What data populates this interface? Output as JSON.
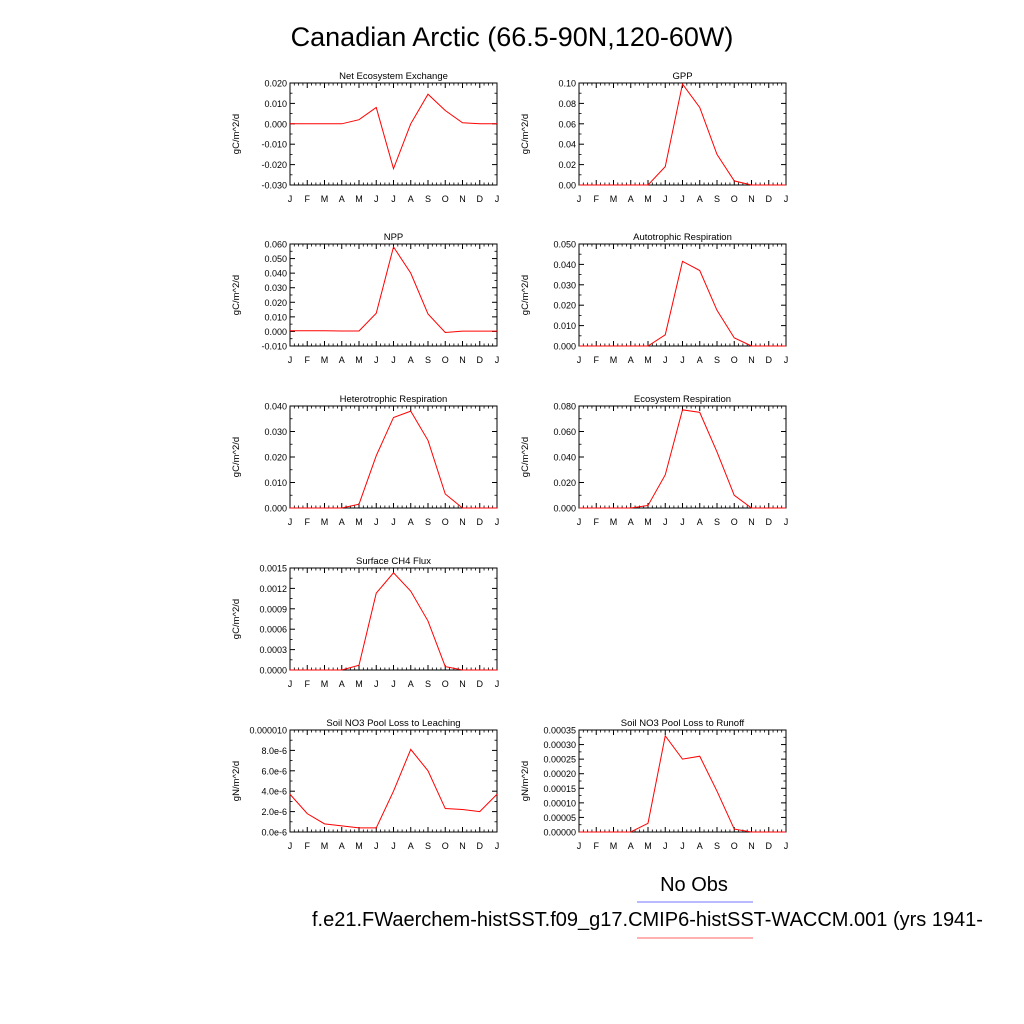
{
  "figure": {
    "title": "Canadian Arctic (66.5-90N,120-60W)",
    "legend": [
      {
        "label": "No Obs",
        "color": "#8f8fff"
      },
      {
        "label": "f.e21.FWaerchem-histSST.f09_g17.CMIP6-histSST-WACCM.001 (yrs 1941-",
        "color": "#ff8080"
      }
    ],
    "series_color": "#ff0000"
  },
  "chart_data": [
    {
      "type": "line",
      "title": "Net Ecosystem Exchange",
      "ylabel": "gC/m^2/d",
      "categories": [
        "J",
        "F",
        "M",
        "A",
        "M",
        "J",
        "J",
        "A",
        "S",
        "O",
        "N",
        "D",
        "J"
      ],
      "ylim": [
        -0.03,
        0.02
      ],
      "yticks": [
        -0.03,
        -0.02,
        -0.01,
        0.0,
        0.01,
        0.02
      ],
      "ytick_labels": [
        "-0.030",
        "-0.020",
        "-0.010",
        "0.000",
        "0.010",
        "0.020"
      ],
      "values": [
        0.0,
        0.0,
        0.0,
        0.0,
        0.002,
        0.008,
        -0.022,
        0.0,
        0.0145,
        0.0065,
        0.0005,
        0.0,
        0.0
      ]
    },
    {
      "type": "line",
      "title": "GPP",
      "ylabel": "gC/m^2/d",
      "categories": [
        "J",
        "F",
        "M",
        "A",
        "M",
        "J",
        "J",
        "A",
        "S",
        "O",
        "N",
        "D",
        "J"
      ],
      "ylim": [
        0.0,
        0.1
      ],
      "yticks": [
        0.0,
        0.02,
        0.04,
        0.06,
        0.08,
        0.1
      ],
      "ytick_labels": [
        "0.00",
        "0.02",
        "0.04",
        "0.06",
        "0.08",
        "0.10"
      ],
      "values": [
        0.0,
        0.0,
        0.0,
        0.0,
        0.0,
        0.018,
        0.099,
        0.076,
        0.03,
        0.004,
        0.0,
        0.0,
        0.0
      ]
    },
    {
      "type": "line",
      "title": "NPP",
      "ylabel": "gC/m^2/d",
      "categories": [
        "J",
        "F",
        "M",
        "A",
        "M",
        "J",
        "J",
        "A",
        "S",
        "O",
        "N",
        "D",
        "J"
      ],
      "ylim": [
        -0.01,
        0.06
      ],
      "yticks": [
        -0.01,
        0.0,
        0.01,
        0.02,
        0.03,
        0.04,
        0.05,
        0.06
      ],
      "ytick_labels": [
        "-0.010",
        "0.000",
        "0.010",
        "0.020",
        "0.030",
        "0.040",
        "0.050",
        "0.060"
      ],
      "values": [
        0.0005,
        0.0005,
        0.0005,
        0.0003,
        0.0003,
        0.0125,
        0.058,
        0.04,
        0.012,
        -0.0007,
        0.0002,
        0.0002,
        0.0002
      ]
    },
    {
      "type": "line",
      "title": "Autotrophic Respiration",
      "ylabel": "gC/m^2/d",
      "categories": [
        "J",
        "F",
        "M",
        "A",
        "M",
        "J",
        "J",
        "A",
        "S",
        "O",
        "N",
        "D",
        "J"
      ],
      "ylim": [
        0.0,
        0.05
      ],
      "yticks": [
        0.0,
        0.01,
        0.02,
        0.03,
        0.04,
        0.05
      ],
      "ytick_labels": [
        "0.000",
        "0.010",
        "0.020",
        "0.030",
        "0.040",
        "0.050"
      ],
      "values": [
        0.0,
        0.0,
        0.0,
        0.0,
        0.0,
        0.0055,
        0.0415,
        0.037,
        0.0175,
        0.004,
        0.0,
        0.0,
        0.0
      ]
    },
    {
      "type": "line",
      "title": "Heterotrophic Respiration",
      "ylabel": "gC/m^2/d",
      "categories": [
        "J",
        "F",
        "M",
        "A",
        "M",
        "J",
        "J",
        "A",
        "S",
        "O",
        "N",
        "D",
        "J"
      ],
      "ylim": [
        0.0,
        0.04
      ],
      "yticks": [
        0.0,
        0.01,
        0.02,
        0.03,
        0.04
      ],
      "ytick_labels": [
        "0.000",
        "0.010",
        "0.020",
        "0.030",
        "0.040"
      ],
      "values": [
        0.0,
        0.0,
        0.0,
        0.0,
        0.0015,
        0.0205,
        0.0355,
        0.038,
        0.0265,
        0.0055,
        0.0,
        0.0,
        0.0
      ]
    },
    {
      "type": "line",
      "title": "Ecosystem Respiration",
      "ylabel": "gC/m^2/d",
      "categories": [
        "J",
        "F",
        "M",
        "A",
        "M",
        "J",
        "J",
        "A",
        "S",
        "O",
        "N",
        "D",
        "J"
      ],
      "ylim": [
        0.0,
        0.08
      ],
      "yticks": [
        0.0,
        0.02,
        0.04,
        0.06,
        0.08
      ],
      "ytick_labels": [
        "0.000",
        "0.020",
        "0.040",
        "0.060",
        "0.080"
      ],
      "values": [
        0.0,
        0.0,
        0.0,
        0.0,
        0.002,
        0.026,
        0.077,
        0.075,
        0.044,
        0.01,
        0.0,
        0.0,
        0.0
      ]
    },
    {
      "type": "line",
      "title": "Surface CH4 Flux",
      "ylabel": "gC/m^2/d",
      "categories": [
        "J",
        "F",
        "M",
        "A",
        "M",
        "J",
        "J",
        "A",
        "S",
        "O",
        "N",
        "D",
        "J"
      ],
      "ylim": [
        0.0,
        0.0015
      ],
      "yticks": [
        0.0,
        0.0003,
        0.0006,
        0.0009,
        0.0012,
        0.0015
      ],
      "ytick_labels": [
        "0.0000",
        "0.0003",
        "0.0006",
        "0.0009",
        "0.0012",
        "0.0015"
      ],
      "values": [
        0.0,
        0.0,
        0.0,
        0.0,
        7e-05,
        0.00113,
        0.00143,
        0.00116,
        0.00072,
        5e-05,
        0.0,
        0.0,
        0.0
      ]
    },
    {
      "type": "line",
      "title": "Soil NO3 Pool Loss to Leaching",
      "ylabel": "gN/m^2/d",
      "categories": [
        "J",
        "F",
        "M",
        "A",
        "M",
        "J",
        "J",
        "A",
        "S",
        "O",
        "N",
        "D",
        "J"
      ],
      "ylim": [
        0.0,
        1e-05
      ],
      "yticks": [
        0.0,
        2e-06,
        4e-06,
        6e-06,
        8e-06,
        1e-05
      ],
      "ytick_labels": [
        "0.0e-6",
        "2.0e-6",
        "4.0e-6",
        "6.0e-6",
        "8.0e-6",
        "0.000010"
      ],
      "values": [
        3.7e-06,
        1.8e-06,
        8e-07,
        6e-07,
        4e-07,
        4e-07,
        4e-06,
        8.1e-06,
        6e-06,
        2.3e-06,
        2.2e-06,
        2e-06,
        3.7e-06
      ]
    },
    {
      "type": "line",
      "title": "Soil NO3 Pool Loss to Runoff",
      "ylabel": "gN/m^2/d",
      "categories": [
        "J",
        "F",
        "M",
        "A",
        "M",
        "J",
        "J",
        "A",
        "S",
        "O",
        "N",
        "D",
        "J"
      ],
      "ylim": [
        0.0,
        0.00035
      ],
      "yticks": [
        0.0,
        5e-05,
        0.0001,
        0.00015,
        0.0002,
        0.00025,
        0.0003,
        0.00035
      ],
      "ytick_labels": [
        "0.00000",
        "0.00005",
        "0.00010",
        "0.00015",
        "0.00020",
        "0.00025",
        "0.00030",
        "0.00035"
      ],
      "values": [
        0.0,
        0.0,
        0.0,
        0.0,
        3e-05,
        0.00033,
        0.00025,
        0.00026,
        0.00014,
        1e-05,
        0.0,
        0.0,
        0.0
      ]
    }
  ]
}
